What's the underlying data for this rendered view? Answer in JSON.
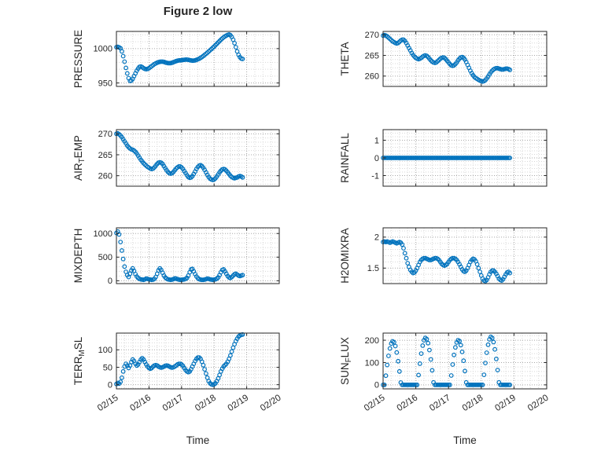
{
  "title": "Figure 2 low",
  "style": {
    "marker_color": "#0072BD",
    "axis_color": "#262626",
    "grid_color": "#a8a8a8",
    "minor_grid_color": "#d8d8d8",
    "background": "#ffffff"
  },
  "time": {
    "xlabel": "Time",
    "xlim_hours": [
      0,
      120
    ],
    "xtick_hours": [
      0,
      24,
      48,
      72,
      96,
      120
    ],
    "xtick_labels": [
      "02/15",
      "02/16",
      "02/17",
      "02/18",
      "02/19",
      "02/20"
    ],
    "x_hours": [
      0,
      1,
      2,
      3,
      4,
      5,
      6,
      7,
      8,
      9,
      10,
      11,
      12,
      13,
      14,
      15,
      16,
      17,
      18,
      19,
      20,
      21,
      22,
      23,
      24,
      25,
      26,
      27,
      28,
      29,
      30,
      31,
      32,
      33,
      34,
      35,
      36,
      37,
      38,
      39,
      40,
      41,
      42,
      43,
      44,
      45,
      46,
      47,
      48,
      49,
      50,
      51,
      52,
      53,
      54,
      55,
      56,
      57,
      58,
      59,
      60,
      61,
      62,
      63,
      64,
      65,
      66,
      67,
      68,
      69,
      70,
      71,
      72,
      73,
      74,
      75,
      76,
      77,
      78,
      79,
      80,
      81,
      82,
      83,
      84,
      85,
      86,
      87,
      88,
      89,
      90,
      91,
      92,
      93
    ]
  },
  "chart_data": [
    {
      "id": "pressure",
      "type": "scatter",
      "ylabel": "PRESSURE",
      "ylabel_parts": [
        {
          "t": "PRESSURE",
          "sub": false
        }
      ],
      "ylim": [
        945,
        1025
      ],
      "ytick_values": [
        950,
        1000
      ],
      "ytick_labels": [
        "950",
        "1000"
      ],
      "y": [
        1002,
        1002.5,
        1001.8,
        1000.5,
        996,
        989,
        981,
        972,
        964,
        957,
        953,
        953.5,
        956,
        960,
        964,
        968,
        971,
        973.5,
        974,
        973,
        971.5,
        970.5,
        970,
        970.5,
        971.5,
        973,
        974.5,
        976,
        977.5,
        978.5,
        979.5,
        980.2,
        980.8,
        981,
        981,
        980.6,
        980,
        979.4,
        979,
        978.8,
        979,
        979.5,
        980.2,
        981,
        981.8,
        982.4,
        982.8,
        983,
        983.2,
        983.5,
        983.8,
        984,
        984,
        983.7,
        983.2,
        982.8,
        982.5,
        982.6,
        983,
        983.6,
        984.4,
        985.4,
        986.5,
        987.8,
        989.2,
        990.8,
        992.4,
        994,
        995.8,
        997.6,
        999.4,
        1001.2,
        1003,
        1005,
        1007,
        1009,
        1011,
        1013,
        1014.8,
        1016.4,
        1017.8,
        1019,
        1020,
        1020.5,
        1019.5,
        1017,
        1013,
        1008,
        1002,
        996,
        991,
        987.5,
        985.5,
        985
      ]
    },
    {
      "id": "theta",
      "type": "scatter",
      "ylabel": "THETA",
      "ylabel_parts": [
        {
          "t": "THETA",
          "sub": false
        }
      ],
      "ylim": [
        257.5,
        270.8
      ],
      "ytick_values": [
        260,
        265,
        270
      ],
      "ytick_labels": [
        "260",
        "265",
        "270"
      ],
      "y": [
        269.8,
        269.9,
        269.8,
        269.6,
        269.3,
        269.0,
        268.7,
        268.4,
        268.2,
        268.0,
        267.9,
        268.0,
        268.3,
        268.6,
        268.8,
        268.8,
        268.5,
        268.0,
        267.4,
        266.8,
        266.2,
        265.6,
        265.1,
        264.7,
        264.4,
        264.2,
        264.1,
        264.2,
        264.4,
        264.7,
        264.9,
        265.0,
        264.9,
        264.6,
        264.2,
        263.8,
        263.5,
        263.3,
        263.2,
        263.3,
        263.6,
        263.9,
        264.2,
        264.4,
        264.5,
        264.4,
        264.1,
        263.7,
        263.3,
        262.9,
        262.6,
        262.5,
        262.6,
        262.9,
        263.3,
        263.8,
        264.2,
        264.5,
        264.6,
        264.4,
        264.0,
        263.4,
        262.7,
        262.0,
        261.3,
        260.7,
        260.2,
        259.8,
        259.5,
        259.3,
        259.1,
        258.9,
        258.8,
        258.7,
        258.8,
        259.0,
        259.4,
        259.9,
        260.4,
        260.9,
        261.3,
        261.6,
        261.8,
        261.9,
        261.9,
        261.8,
        261.7,
        261.6,
        261.6,
        261.7,
        261.8,
        261.8,
        261.7,
        261.5
      ]
    },
    {
      "id": "air_temp",
      "type": "scatter",
      "ylabel": "AIR_TEMP",
      "ylabel_parts": [
        {
          "t": "AIR",
          "sub": false
        },
        {
          "t": "T",
          "sub": true
        },
        {
          "t": "EMP",
          "sub": false
        }
      ],
      "ylim": [
        257.5,
        271
      ],
      "ytick_values": [
        260,
        265,
        270
      ],
      "ytick_labels": [
        "260",
        "265",
        "270"
      ],
      "y": [
        270.0,
        270.1,
        269.9,
        269.6,
        269.2,
        268.7,
        268.2,
        267.7,
        267.2,
        266.8,
        266.5,
        266.3,
        266.2,
        266.0,
        265.7,
        265.3,
        264.8,
        264.3,
        263.8,
        263.4,
        263.0,
        262.7,
        262.4,
        262.1,
        261.9,
        261.7,
        261.6,
        261.7,
        262.0,
        262.4,
        262.8,
        263.1,
        263.2,
        263.1,
        262.8,
        262.3,
        261.8,
        261.3,
        260.9,
        260.6,
        260.5,
        260.6,
        260.9,
        261.3,
        261.7,
        262.0,
        262.2,
        262.2,
        262.0,
        261.6,
        261.1,
        260.6,
        260.1,
        259.7,
        259.5,
        259.6,
        259.9,
        260.4,
        261.0,
        261.6,
        262.1,
        262.4,
        262.5,
        262.3,
        261.9,
        261.4,
        260.8,
        260.2,
        259.7,
        259.3,
        259.1,
        259.0,
        259.1,
        259.4,
        259.8,
        260.3,
        260.8,
        261.2,
        261.5,
        261.6,
        261.5,
        261.2,
        260.8,
        260.4,
        260.0,
        259.7,
        259.5,
        259.4,
        259.5,
        259.6,
        259.8,
        259.9,
        259.8,
        259.6
      ]
    },
    {
      "id": "rainfall",
      "type": "scatter",
      "ylabel": "RAINFALL",
      "ylabel_parts": [
        {
          "t": "RAINFALL",
          "sub": false
        }
      ],
      "ylim": [
        -1.6,
        1.6
      ],
      "ytick_values": [
        -1,
        0,
        1
      ],
      "ytick_labels": [
        "-1",
        "0",
        "1"
      ],
      "y": [
        0,
        0,
        0,
        0,
        0,
        0,
        0,
        0,
        0,
        0,
        0,
        0,
        0,
        0,
        0,
        0,
        0,
        0,
        0,
        0,
        0,
        0,
        0,
        0,
        0,
        0,
        0,
        0,
        0,
        0,
        0,
        0,
        0,
        0,
        0,
        0,
        0,
        0,
        0,
        0,
        0,
        0,
        0,
        0,
        0,
        0,
        0,
        0,
        0,
        0,
        0,
        0,
        0,
        0,
        0,
        0,
        0,
        0,
        0,
        0,
        0,
        0,
        0,
        0,
        0,
        0,
        0,
        0,
        0,
        0,
        0,
        0,
        0,
        0,
        0,
        0,
        0,
        0,
        0,
        0,
        0,
        0,
        0,
        0,
        0,
        0,
        0,
        0,
        0,
        0,
        0,
        0,
        0,
        0
      ]
    },
    {
      "id": "mixdepth",
      "type": "scatter",
      "ylabel": "MIXDEPTH",
      "ylabel_parts": [
        {
          "t": "MIXDEPTH",
          "sub": false
        }
      ],
      "ylim": [
        -60,
        1120
      ],
      "ytick_values": [
        0,
        500,
        1000
      ],
      "ytick_labels": [
        "0",
        "500",
        "1000"
      ],
      "y": [
        1010,
        1040,
        980,
        820,
        640,
        460,
        300,
        190,
        120,
        80,
        150,
        220,
        260,
        210,
        140,
        90,
        60,
        40,
        30,
        25,
        20,
        30,
        45,
        40,
        30,
        25,
        20,
        25,
        40,
        80,
        150,
        220,
        260,
        230,
        170,
        110,
        70,
        45,
        30,
        25,
        20,
        25,
        35,
        50,
        45,
        35,
        25,
        20,
        20,
        25,
        30,
        40,
        60,
        110,
        180,
        240,
        250,
        200,
        140,
        90,
        55,
        35,
        25,
        20,
        20,
        25,
        35,
        45,
        40,
        30,
        25,
        20,
        25,
        30,
        45,
        70,
        120,
        180,
        230,
        240,
        200,
        150,
        100,
        70,
        60,
        80,
        110,
        140,
        150,
        130,
        110,
        100,
        110,
        120
      ]
    },
    {
      "id": "h2omixra",
      "type": "scatter",
      "ylabel": "H2OMIXRA",
      "ylabel_parts": [
        {
          "t": "H2OMIXRA",
          "sub": false
        }
      ],
      "ylim": [
        1.25,
        2.15
      ],
      "ytick_values": [
        1.5,
        2
      ],
      "ytick_labels": [
        "1.5",
        "2"
      ],
      "y": [
        1.92,
        1.93,
        1.92,
        1.93,
        1.92,
        1.91,
        1.92,
        1.93,
        1.92,
        1.91,
        1.9,
        1.91,
        1.92,
        1.91,
        1.88,
        1.82,
        1.74,
        1.66,
        1.58,
        1.52,
        1.47,
        1.44,
        1.42,
        1.43,
        1.46,
        1.5,
        1.55,
        1.6,
        1.63,
        1.65,
        1.66,
        1.66,
        1.65,
        1.64,
        1.63,
        1.63,
        1.64,
        1.65,
        1.66,
        1.66,
        1.65,
        1.63,
        1.6,
        1.57,
        1.55,
        1.54,
        1.55,
        1.57,
        1.6,
        1.63,
        1.65,
        1.66,
        1.66,
        1.65,
        1.63,
        1.6,
        1.56,
        1.52,
        1.48,
        1.45,
        1.44,
        1.46,
        1.5,
        1.55,
        1.6,
        1.63,
        1.65,
        1.64,
        1.61,
        1.56,
        1.5,
        1.44,
        1.38,
        1.33,
        1.3,
        1.29,
        1.31,
        1.35,
        1.4,
        1.44,
        1.46,
        1.46,
        1.44,
        1.41,
        1.37,
        1.33,
        1.31,
        1.3,
        1.32,
        1.36,
        1.4,
        1.43,
        1.44,
        1.42
      ]
    },
    {
      "id": "terr_msl",
      "type": "scatter",
      "ylabel": "TERR_MSL",
      "ylabel_parts": [
        {
          "t": "TERR",
          "sub": false
        },
        {
          "t": "M",
          "sub": true
        },
        {
          "t": "SL",
          "sub": false
        }
      ],
      "ylim": [
        -12,
        148
      ],
      "ytick_values": [
        0,
        50,
        100
      ],
      "ytick_labels": [
        "0",
        "50",
        "100"
      ],
      "y": [
        2,
        5,
        3,
        8,
        20,
        38,
        52,
        60,
        55,
        48,
        55,
        65,
        72,
        68,
        60,
        55,
        58,
        65,
        72,
        76,
        72,
        65,
        58,
        52,
        48,
        46,
        48,
        52,
        55,
        56,
        55,
        52,
        50,
        49,
        50,
        52,
        54,
        55,
        54,
        52,
        50,
        49,
        50,
        52,
        55,
        58,
        60,
        60,
        58,
        54,
        48,
        42,
        38,
        36,
        38,
        44,
        52,
        60,
        68,
        74,
        78,
        78,
        74,
        66,
        56,
        44,
        32,
        20,
        10,
        4,
        1,
        0,
        1,
        4,
        10,
        18,
        28,
        38,
        46,
        52,
        56,
        60,
        66,
        74,
        84,
        95,
        106,
        116,
        125,
        132,
        138,
        141,
        143,
        144
      ]
    },
    {
      "id": "sun_flux",
      "type": "scatter",
      "ylabel": "SUN_FLUX",
      "ylabel_parts": [
        {
          "t": "SUN",
          "sub": false
        },
        {
          "t": "F",
          "sub": true
        },
        {
          "t": "LUX",
          "sub": false
        }
      ],
      "ylim": [
        -18,
        232
      ],
      "ytick_values": [
        0,
        100,
        200
      ],
      "ytick_labels": [
        "0",
        "100",
        "200"
      ],
      "y": [
        0,
        0,
        41,
        89,
        130,
        163,
        185,
        195,
        191,
        174,
        145,
        106,
        60,
        10,
        0,
        0,
        0,
        0,
        0,
        0,
        0,
        0,
        0,
        0,
        0,
        0,
        44,
        95,
        140,
        176,
        200,
        210,
        205,
        187,
        156,
        114,
        65,
        11,
        0,
        0,
        0,
        0,
        0,
        0,
        0,
        0,
        0,
        0,
        0,
        0,
        42,
        91,
        134,
        168,
        190,
        200,
        196,
        178,
        148,
        108,
        62,
        11,
        0,
        0,
        0,
        0,
        0,
        0,
        0,
        0,
        0,
        0,
        0,
        0,
        45,
        98,
        144,
        180,
        204,
        215,
        210,
        192,
        159,
        116,
        66,
        11,
        0,
        0,
        0,
        0,
        0,
        0,
        0,
        0
      ]
    }
  ]
}
